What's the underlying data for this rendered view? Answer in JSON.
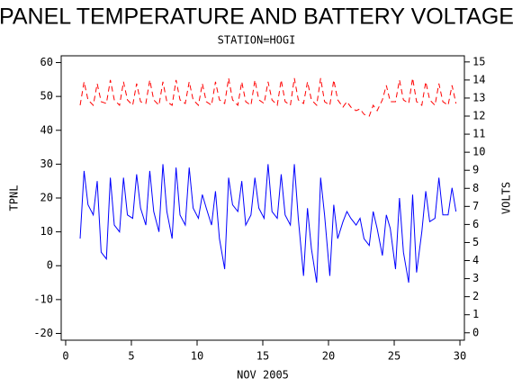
{
  "chart_data": {
    "type": "line",
    "title": "PANEL TEMPERATURE AND BATTERY VOLTAGE",
    "subtitle": "STATION=HOGI",
    "x_label": "NOV 2005",
    "y_label": "TPNL",
    "y2_label": "VOLTS",
    "x": [
      1.1,
      1.4,
      1.7,
      2.1,
      2.4,
      2.7,
      3.1,
      3.4,
      3.7,
      4.1,
      4.4,
      4.7,
      5.1,
      5.4,
      5.7,
      6.1,
      6.4,
      6.7,
      7.1,
      7.4,
      7.7,
      8.1,
      8.4,
      8.7,
      9.1,
      9.4,
      9.7,
      10.1,
      10.4,
      10.7,
      11.1,
      11.4,
      11.7,
      12.1,
      12.4,
      12.7,
      13.1,
      13.4,
      13.7,
      14.1,
      14.4,
      14.7,
      15.1,
      15.4,
      15.7,
      16.1,
      16.4,
      16.7,
      17.1,
      17.4,
      17.7,
      18.1,
      18.4,
      18.7,
      19.1,
      19.4,
      19.7,
      20.1,
      20.4,
      20.7,
      21.1,
      21.4,
      21.7,
      22.1,
      22.4,
      22.7,
      23.1,
      23.4,
      23.7,
      24.1,
      24.4,
      24.7,
      25.1,
      25.4,
      25.7,
      26.1,
      26.4,
      26.7,
      27.1,
      27.4,
      27.7,
      28.1,
      28.4,
      28.7,
      29.1,
      29.4,
      29.7
    ],
    "series": [
      {
        "color": "#0000ff",
        "axis": "y",
        "values": [
          8,
          28,
          18,
          15,
          25,
          4,
          2,
          26,
          12,
          10,
          26,
          15,
          14,
          27,
          17,
          12,
          28,
          16,
          10,
          30,
          16,
          8,
          29,
          15,
          12,
          29,
          17,
          14,
          21,
          17,
          12,
          22,
          8,
          -1,
          26,
          18,
          16,
          25,
          12,
          15,
          26,
          17,
          14,
          30,
          16,
          14,
          27,
          15,
          12,
          30,
          14,
          -3,
          17,
          5,
          -5,
          26,
          15,
          -3,
          18,
          8,
          13,
          16,
          14,
          12,
          14,
          8,
          6,
          16,
          11,
          3,
          15,
          11,
          -1,
          20,
          4,
          -5,
          21,
          -2,
          10,
          22,
          13,
          14,
          26,
          15,
          15,
          23,
          16
        ]
      },
      {
        "color": "#ff0000",
        "axis": "y2",
        "dashed": true,
        "values": [
          12.6,
          13.9,
          12.9,
          12.6,
          13.8,
          12.8,
          12.7,
          14.0,
          12.9,
          12.6,
          13.9,
          12.9,
          12.6,
          13.8,
          12.8,
          12.7,
          14.0,
          12.9,
          12.6,
          13.9,
          12.8,
          12.6,
          14.0,
          12.9,
          12.7,
          13.9,
          12.9,
          12.6,
          13.8,
          12.8,
          12.6,
          13.9,
          12.9,
          12.7,
          14.1,
          12.9,
          12.6,
          13.9,
          12.8,
          12.6,
          14.0,
          12.9,
          12.7,
          13.9,
          12.9,
          12.6,
          14.0,
          12.8,
          12.6,
          14.1,
          12.9,
          12.7,
          13.9,
          12.9,
          12.6,
          14.1,
          12.8,
          12.6,
          14.0,
          12.9,
          12.5,
          12.8,
          12.5,
          12.3,
          12.4,
          12.1,
          12.0,
          12.6,
          12.3,
          12.9,
          13.7,
          12.8,
          12.8,
          14.0,
          12.9,
          12.7,
          14.1,
          12.8,
          12.6,
          13.9,
          12.9,
          12.6,
          13.8,
          12.8,
          12.6,
          13.7,
          12.7
        ]
      }
    ],
    "xlim": [
      -0.34,
      30.34
    ],
    "xticks": [
      0,
      5,
      10,
      15,
      20,
      25,
      30
    ],
    "ylim": [
      -22,
      62
    ],
    "yticks": [
      -20,
      -10,
      0,
      10,
      20,
      30,
      40,
      50,
      60
    ],
    "y2lim": [
      -0.41,
      15.34
    ],
    "y2ticks": [
      0,
      1,
      2,
      3,
      4,
      5,
      6,
      7,
      8,
      9,
      10,
      11,
      12,
      13,
      14,
      15
    ]
  }
}
